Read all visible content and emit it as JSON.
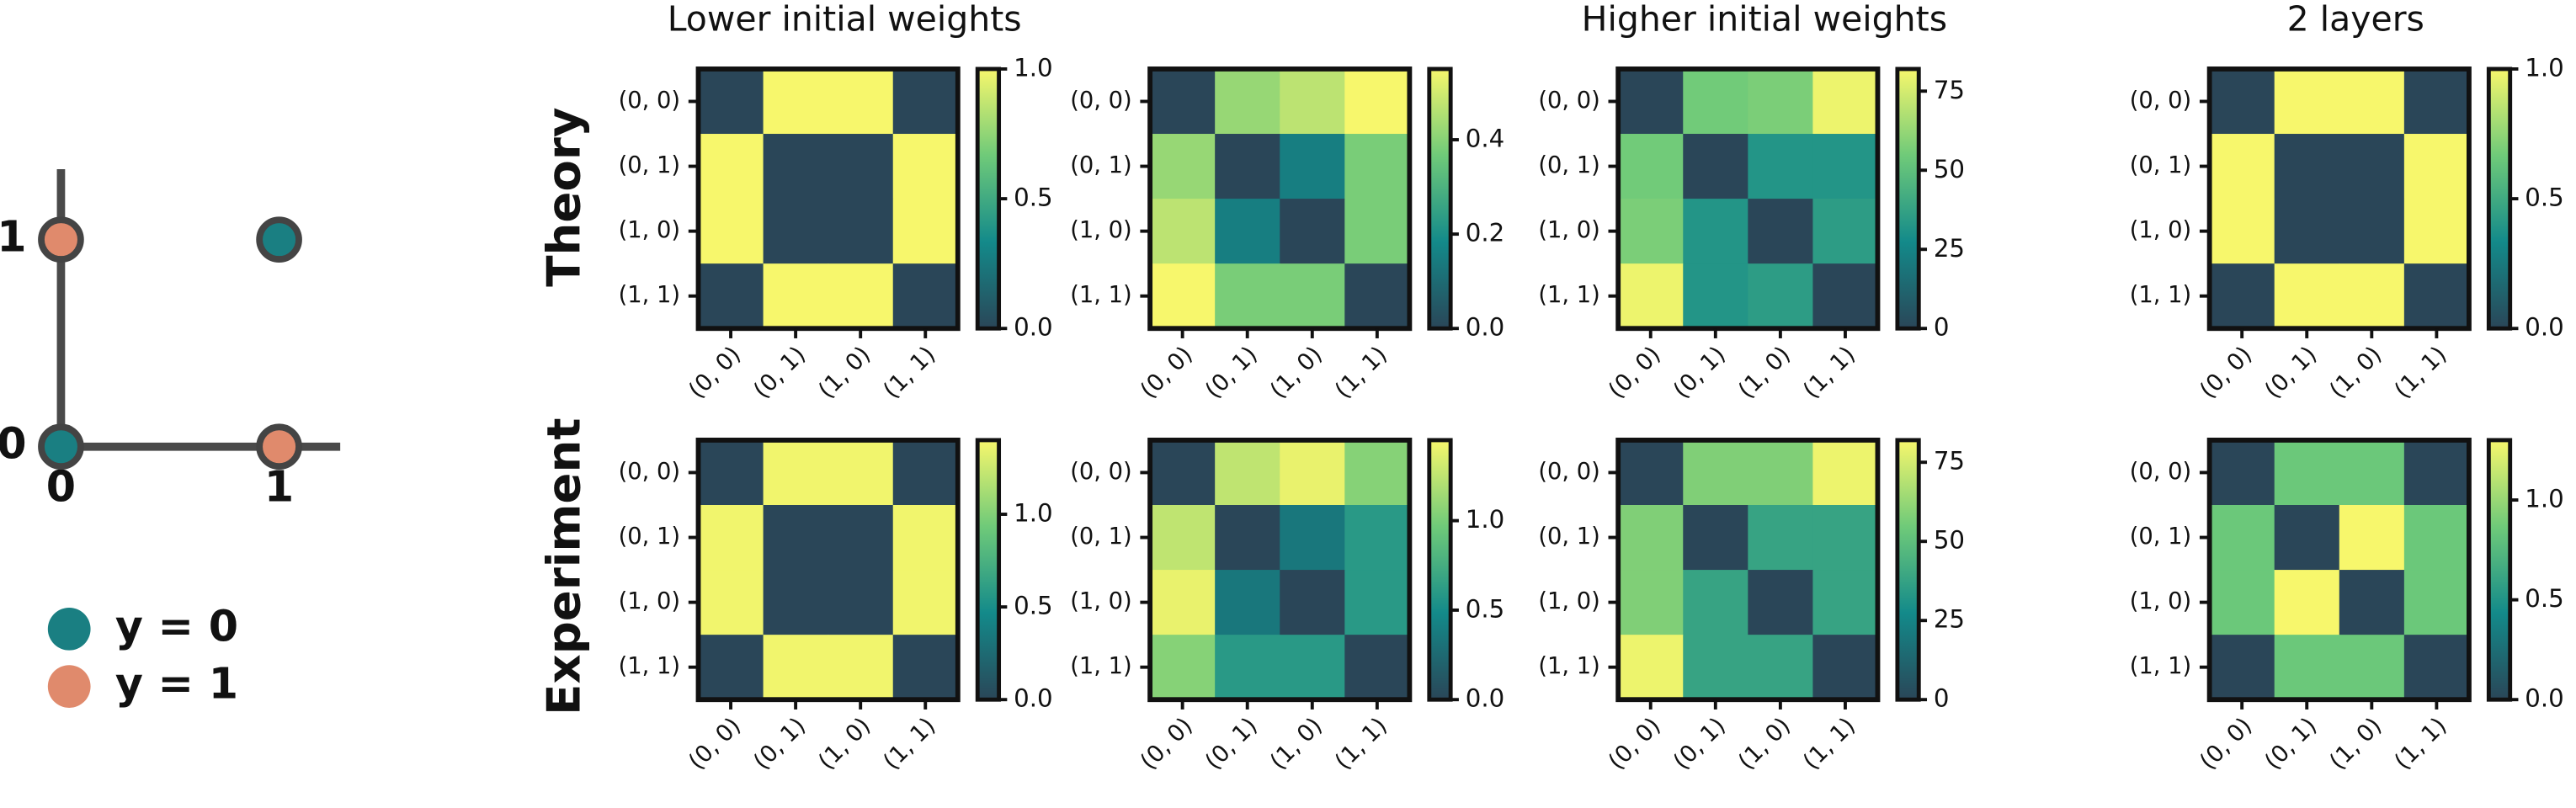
{
  "colormap": [
    "#2a4658",
    "#138a8a",
    "#6fca79",
    "#f7f76c"
  ],
  "row_labels": [
    "Theory",
    "Experiment"
  ],
  "chart_data": [
    {
      "type": "heatmap",
      "title": "Lower initial weights",
      "categories": [
        "(0, 0)",
        "(0, 1)",
        "(1, 0)",
        "(1, 1)"
      ],
      "values": [
        [
          0,
          1,
          1,
          0
        ],
        [
          1,
          0,
          0,
          1
        ],
        [
          1,
          0,
          0,
          1
        ],
        [
          0,
          1,
          1,
          0
        ]
      ],
      "zlim": [
        0,
        1
      ],
      "zticks": [
        {
          "value": 0,
          "label": "0.0"
        },
        0.5,
        {
          "value": 1,
          "label": "1.0"
        }
      ]
    },
    {
      "type": "heatmap",
      "categories": [
        "(0, 0)",
        "(0, 1)",
        "(1, 0)",
        "(1, 1)"
      ],
      "values": [
        [
          0,
          0.42,
          0.47,
          0.55
        ],
        [
          0.42,
          0,
          0.15,
          0.38
        ],
        [
          0.47,
          0.15,
          0,
          0.38
        ],
        [
          0.55,
          0.38,
          0.38,
          0
        ]
      ],
      "zlim": [
        0,
        0.55
      ],
      "zticks": [
        {
          "value": 0,
          "label": "0.0"
        },
        0.2,
        0.4
      ]
    },
    {
      "type": "heatmap",
      "title": "Higher initial weights",
      "categories": [
        "(0, 0)",
        "(0, 1)",
        "(1, 0)",
        "(1, 1)"
      ],
      "values": [
        [
          0,
          55,
          57,
          80
        ],
        [
          55,
          0,
          32,
          32
        ],
        [
          57,
          32,
          0,
          35
        ],
        [
          80,
          32,
          35,
          0
        ]
      ],
      "zlim": [
        0,
        82
      ],
      "zticks": [
        0,
        25,
        50,
        75
      ]
    },
    {
      "type": "heatmap",
      "title": "2 layers",
      "categories": [
        "(0, 0)",
        "(0, 1)",
        "(1, 0)",
        "(1, 1)"
      ],
      "values": [
        [
          0,
          1,
          1,
          0
        ],
        [
          1,
          0,
          0,
          1
        ],
        [
          1,
          0,
          0,
          1
        ],
        [
          0,
          1,
          1,
          0
        ]
      ],
      "zlim": [
        0,
        1
      ],
      "zticks": [
        {
          "value": 0,
          "label": "0.0"
        },
        0.5,
        {
          "value": 1,
          "label": "1.0"
        }
      ]
    },
    {
      "type": "heatmap",
      "categories": [
        "(0, 0)",
        "(0, 1)",
        "(1, 0)",
        "(1, 1)"
      ],
      "values": [
        [
          0,
          1.38,
          1.38,
          0
        ],
        [
          1.38,
          0,
          0,
          1.38
        ],
        [
          1.38,
          0,
          0,
          1.38
        ],
        [
          0,
          1.38,
          1.38,
          0
        ]
      ],
      "zlim": [
        0,
        1.4
      ],
      "zticks": [
        {
          "value": 0,
          "label": "0.0"
        },
        0.5,
        {
          "value": 1,
          "label": "1.0"
        }
      ]
    },
    {
      "type": "heatmap",
      "categories": [
        "(0, 0)",
        "(0, 1)",
        "(1, 0)",
        "(1, 1)"
      ],
      "values": [
        [
          0,
          1.25,
          1.4,
          1.05
        ],
        [
          1.25,
          0,
          0.35,
          0.6
        ],
        [
          1.4,
          0.35,
          0,
          0.6
        ],
        [
          1.05,
          0.6,
          0.6,
          0
        ]
      ],
      "zlim": [
        0,
        1.45
      ],
      "zticks": [
        {
          "value": 0,
          "label": "0.0"
        },
        0.5,
        {
          "value": 1,
          "label": "1.0"
        }
      ]
    },
    {
      "type": "heatmap",
      "categories": [
        "(0, 0)",
        "(0, 1)",
        "(1, 0)",
        "(1, 1)"
      ],
      "values": [
        [
          0,
          58,
          58,
          80
        ],
        [
          58,
          0,
          38,
          38
        ],
        [
          58,
          38,
          0,
          38
        ],
        [
          80,
          38,
          38,
          0
        ]
      ],
      "zlim": [
        0,
        82
      ],
      "zticks": [
        0,
        25,
        50,
        75
      ]
    },
    {
      "type": "heatmap",
      "categories": [
        "(0, 0)",
        "(0, 1)",
        "(1, 0)",
        "(1, 1)"
      ],
      "values": [
        [
          0,
          0.85,
          0.85,
          0
        ],
        [
          0.85,
          0,
          1.3,
          0.85
        ],
        [
          0.85,
          1.3,
          0,
          0.85
        ],
        [
          0,
          0.85,
          0.85,
          0
        ]
      ],
      "zlim": [
        0,
        1.3
      ],
      "zticks": [
        {
          "value": 0,
          "label": "0.0"
        },
        0.5,
        {
          "value": 1,
          "label": "1.0"
        }
      ]
    },
    {
      "type": "scatter",
      "series": [
        {
          "name": "y = 0",
          "color": "#1a7f82",
          "x": [
            0,
            1
          ],
          "values": [
            0,
            1
          ]
        },
        {
          "name": "y = 1",
          "color": "#e08a6c",
          "x": [
            0,
            1
          ],
          "values": [
            1,
            0
          ]
        }
      ],
      "xlim": [
        0,
        1.28
      ],
      "ylim": [
        0,
        1.34
      ],
      "xticks": [
        0,
        1
      ],
      "yticks": [
        0,
        1
      ]
    }
  ]
}
